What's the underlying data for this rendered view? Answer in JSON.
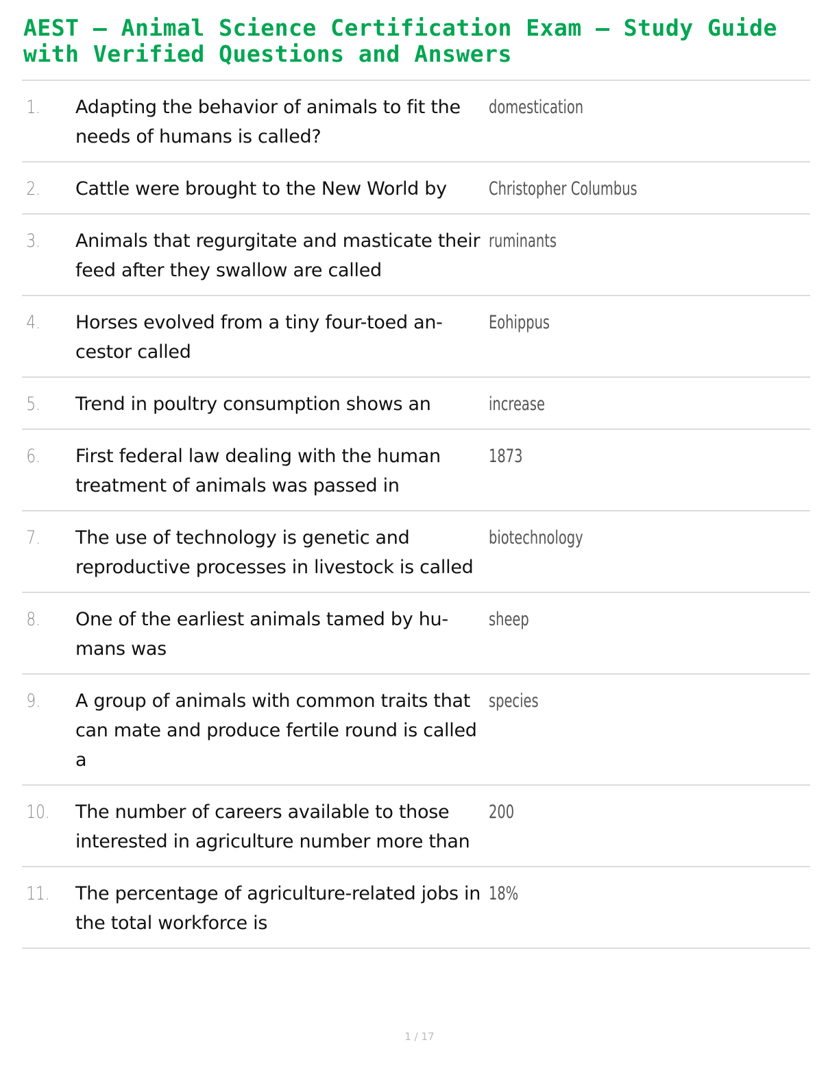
{
  "title": "AEST – Animal Science Certification Exam – Study Guide with Verified Questions and Answers",
  "accent_color": "#00a651",
  "items": [
    {
      "number": "1.",
      "question": "Adapting the behavior of animals to fit the needs of humans is called?",
      "answer": "domestication"
    },
    {
      "number": "2.",
      "question": "Cattle were brought to the New World by",
      "answer": "Christopher Columbus"
    },
    {
      "number": "3.",
      "question": "Animals that regurgitate and masticate their feed after they swallow are called",
      "answer": "ruminants"
    },
    {
      "number": "4.",
      "question": "Horses evolved from a tiny four-toed an­cestor called",
      "answer": "Eohippus"
    },
    {
      "number": "5.",
      "question": "Trend in poultry consumption shows an",
      "answer": "increase"
    },
    {
      "number": "6.",
      "question": "First federal law dealing with the human treatment of animals was passed in",
      "answer": "1873"
    },
    {
      "number": "7.",
      "question": "The use of technology is genetic and reproductive processes in livestock is called",
      "answer": "biotechnology"
    },
    {
      "number": "8.",
      "question": "One of the earliest animals tamed by hu­mans was",
      "answer": "sheep"
    },
    {
      "number": "9.",
      "question": "A group of animals with common traits that can mate and produce fertile round is called a",
      "answer": "species"
    },
    {
      "number": "10.",
      "question": "The number of careers available to those interested in agriculture number more than",
      "answer": "200"
    },
    {
      "number": "11.",
      "question": "The percentage of agriculture-related jobs in the total workforce is",
      "answer": "18%"
    }
  ],
  "page_indicator": "1 / 17"
}
